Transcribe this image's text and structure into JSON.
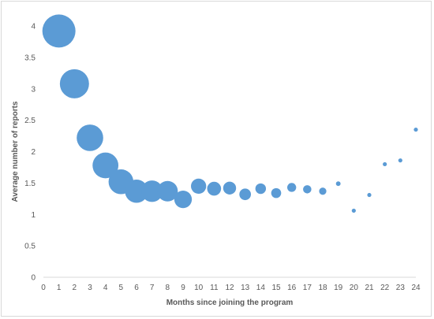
{
  "chart_data": {
    "type": "scatter",
    "variant": "bubble",
    "title": "",
    "xlabel": "Months since joining the program",
    "ylabel": "Average number of reports",
    "xlim": [
      0,
      24
    ],
    "ylim": [
      0,
      4
    ],
    "x_ticks": [
      "0",
      "1",
      "2",
      "3",
      "4",
      "5",
      "6",
      "7",
      "8",
      "9",
      "10",
      "11",
      "12",
      "13",
      "14",
      "15",
      "16",
      "17",
      "18",
      "19",
      "20",
      "21",
      "22",
      "23",
      "24"
    ],
    "y_ticks": [
      "0",
      "0.5",
      "1",
      "1.5",
      "2",
      "2.5",
      "3",
      "3.5",
      "4"
    ],
    "grid": false,
    "legend": "none",
    "bubble_color": "#5b9bd5",
    "series": [
      {
        "points": [
          {
            "x": 1,
            "y": 3.92,
            "size": 1.0
          },
          {
            "x": 2,
            "y": 3.08,
            "size": 0.88
          },
          {
            "x": 3,
            "y": 2.22,
            "size": 0.8
          },
          {
            "x": 4,
            "y": 1.78,
            "size": 0.78
          },
          {
            "x": 5,
            "y": 1.52,
            "size": 0.75
          },
          {
            "x": 6,
            "y": 1.37,
            "size": 0.7
          },
          {
            "x": 7,
            "y": 1.37,
            "size": 0.65
          },
          {
            "x": 8,
            "y": 1.37,
            "size": 0.62
          },
          {
            "x": 9,
            "y": 1.24,
            "size": 0.53
          },
          {
            "x": 10,
            "y": 1.45,
            "size": 0.46
          },
          {
            "x": 11,
            "y": 1.41,
            "size": 0.42
          },
          {
            "x": 12,
            "y": 1.42,
            "size": 0.39
          },
          {
            "x": 13,
            "y": 1.32,
            "size": 0.35
          },
          {
            "x": 14,
            "y": 1.41,
            "size": 0.32
          },
          {
            "x": 15,
            "y": 1.34,
            "size": 0.3
          },
          {
            "x": 16,
            "y": 1.43,
            "size": 0.27
          },
          {
            "x": 17,
            "y": 1.4,
            "size": 0.25
          },
          {
            "x": 18,
            "y": 1.37,
            "size": 0.22
          },
          {
            "x": 19,
            "y": 1.49,
            "size": 0.14
          },
          {
            "x": 20,
            "y": 1.06,
            "size": 0.12
          },
          {
            "x": 21,
            "y": 1.31,
            "size": 0.12
          },
          {
            "x": 22,
            "y": 1.8,
            "size": 0.11
          },
          {
            "x": 23,
            "y": 1.86,
            "size": 0.11
          },
          {
            "x": 24,
            "y": 2.35,
            "size": 0.1
          }
        ]
      }
    ]
  }
}
